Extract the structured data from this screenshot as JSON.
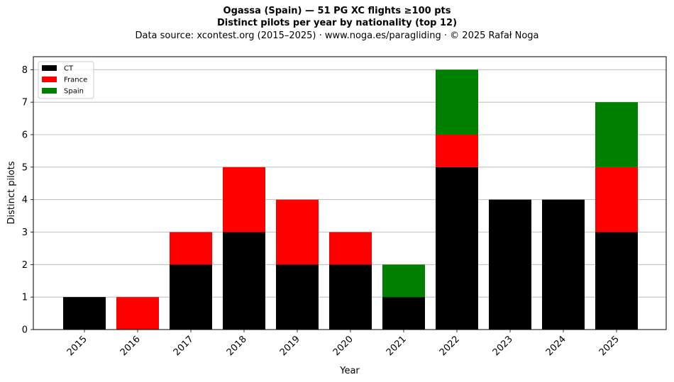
{
  "title_line1": "Ogassa (Spain)  —  51 PG XC flights ≥100 pts",
  "title_line2": "Distinct pilots per year by nationality (top 12)",
  "subtitle": "Data source: xcontest.org (2015–2025)  ·  www.noga.es/paragliding  ·  © 2025 Rafał Noga",
  "chart_data": {
    "type": "bar",
    "stacked": true,
    "categories": [
      "2015",
      "2016",
      "2017",
      "2018",
      "2019",
      "2020",
      "2021",
      "2022",
      "2023",
      "2024",
      "2025"
    ],
    "series": [
      {
        "name": "CT",
        "color": "#000000",
        "values": [
          1,
          0,
          2,
          3,
          2,
          2,
          1,
          5,
          4,
          4,
          3
        ]
      },
      {
        "name": "France",
        "color": "#ff0000",
        "values": [
          0,
          1,
          1,
          2,
          2,
          1,
          0,
          1,
          0,
          0,
          2
        ]
      },
      {
        "name": "Spain",
        "color": "#008000",
        "values": [
          0,
          0,
          0,
          0,
          0,
          0,
          1,
          2,
          0,
          0,
          2
        ]
      }
    ],
    "xlabel": "Year",
    "ylabel": "Distinct pilots",
    "ylim": [
      0,
      8.4
    ],
    "yticks": [
      "0",
      "1",
      "2",
      "3",
      "4",
      "5",
      "6",
      "7",
      "8"
    ],
    "grid": "y",
    "legend_position": "top-left"
  }
}
